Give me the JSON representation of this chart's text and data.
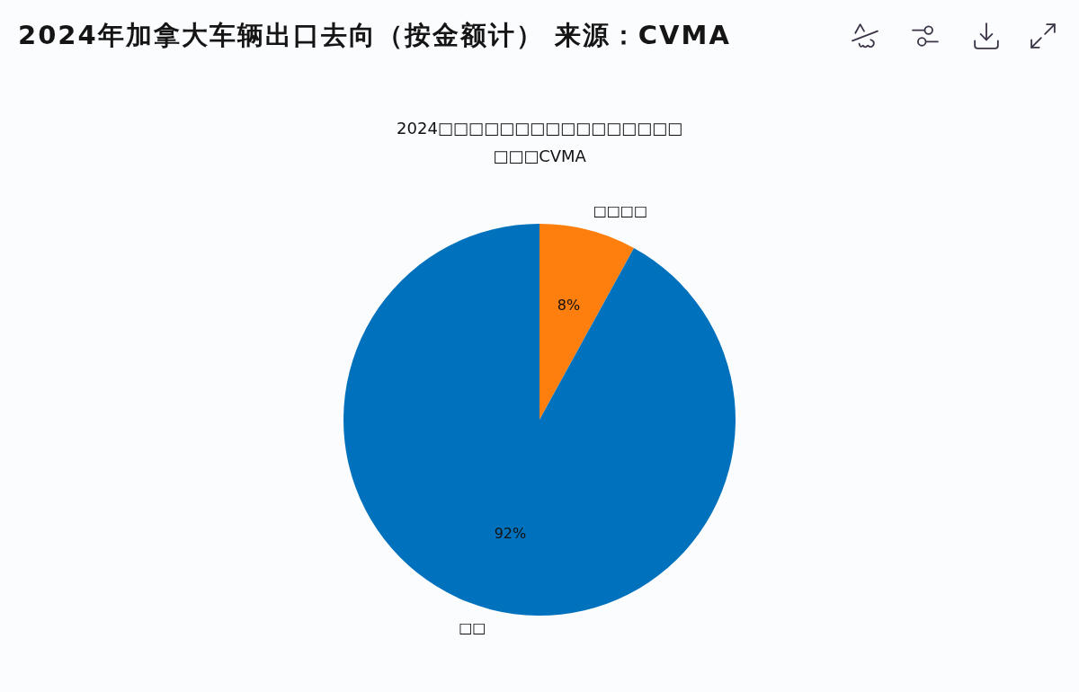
{
  "chart_data": {
    "type": "pie",
    "title": "2024年加拿大车辆出口去向（按金额计） 来源：CVMA",
    "subtitle": "2024□□□□□□□□□□□□□□□□\n□□□CVMA",
    "categories": [
      "□□□□",
      "□□"
    ],
    "values": [
      8,
      92
    ],
    "colors": [
      "#ff7f0e",
      "#0071bc"
    ],
    "value_labels": [
      "8%",
      "92%"
    ]
  }
}
